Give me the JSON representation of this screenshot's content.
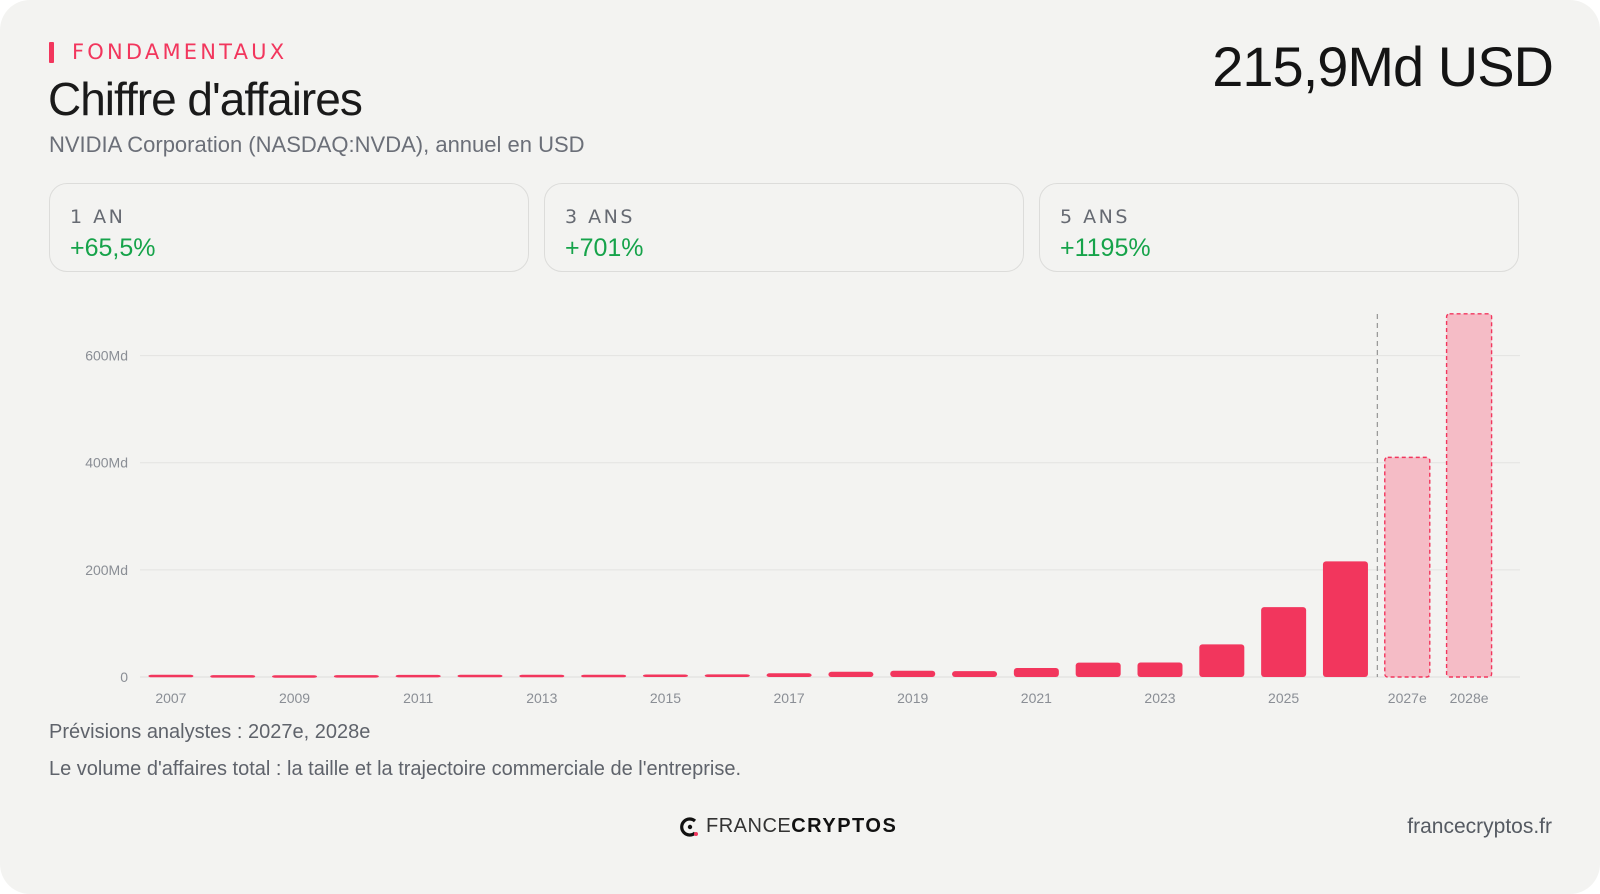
{
  "header": {
    "eyebrow": "FONDAMENTAUX",
    "title": "Chiffre d'affaires",
    "subtitle": "NVIDIA Corporation (NASDAQ:NVDA), annuel en USD",
    "headline_value": "215,9Md USD"
  },
  "stats": [
    {
      "label": "1 AN",
      "value": "+65,5%"
    },
    {
      "label": "3 ANS",
      "value": "+701%"
    },
    {
      "label": "5 ANS",
      "value": "+1195%"
    }
  ],
  "colors": {
    "accent": "#f2365d",
    "forecast_fill": "#f5bcc6",
    "positive": "#16a34a"
  },
  "chart_data": {
    "type": "bar",
    "categories": [
      "2007",
      "2008",
      "2009",
      "2010",
      "2011",
      "2012",
      "2013",
      "2014",
      "2015",
      "2016",
      "2017",
      "2018",
      "2019",
      "2020",
      "2021",
      "2022",
      "2023",
      "2024",
      "2025",
      "2026",
      "2027e",
      "2028e"
    ],
    "values": [
      4.1,
      3.4,
      3.3,
      3.5,
      4.0,
      4.3,
      4.1,
      4.1,
      4.7,
      5.0,
      6.9,
      9.7,
      11.7,
      10.9,
      16.7,
      26.9,
      27.0,
      60.9,
      130.5,
      215.9,
      410,
      678
    ],
    "forecast_categories": [
      "2027e",
      "2028e"
    ],
    "x_tick_labels": [
      "2007",
      "2009",
      "2011",
      "2013",
      "2015",
      "2017",
      "2019",
      "2021",
      "2023",
      "2025",
      "2027e",
      "2028e"
    ],
    "y_ticks": [
      {
        "value": 0,
        "label": "0"
      },
      {
        "value": 200,
        "label": "200Md"
      },
      {
        "value": 400,
        "label": "400Md"
      },
      {
        "value": 600,
        "label": "600Md"
      }
    ],
    "ylim": [
      0,
      680
    ],
    "grid": true,
    "unit": "Md USD"
  },
  "footer": {
    "forecast_note": "Prévisions analystes : 2027e, 2028e",
    "description": "Le volume d'affaires total : la taille et la trajectoire commerciale de l'entreprise.",
    "logo_france": "FRANCE",
    "logo_cryptos": "CRYPTOS",
    "site": "francecryptos.fr"
  }
}
